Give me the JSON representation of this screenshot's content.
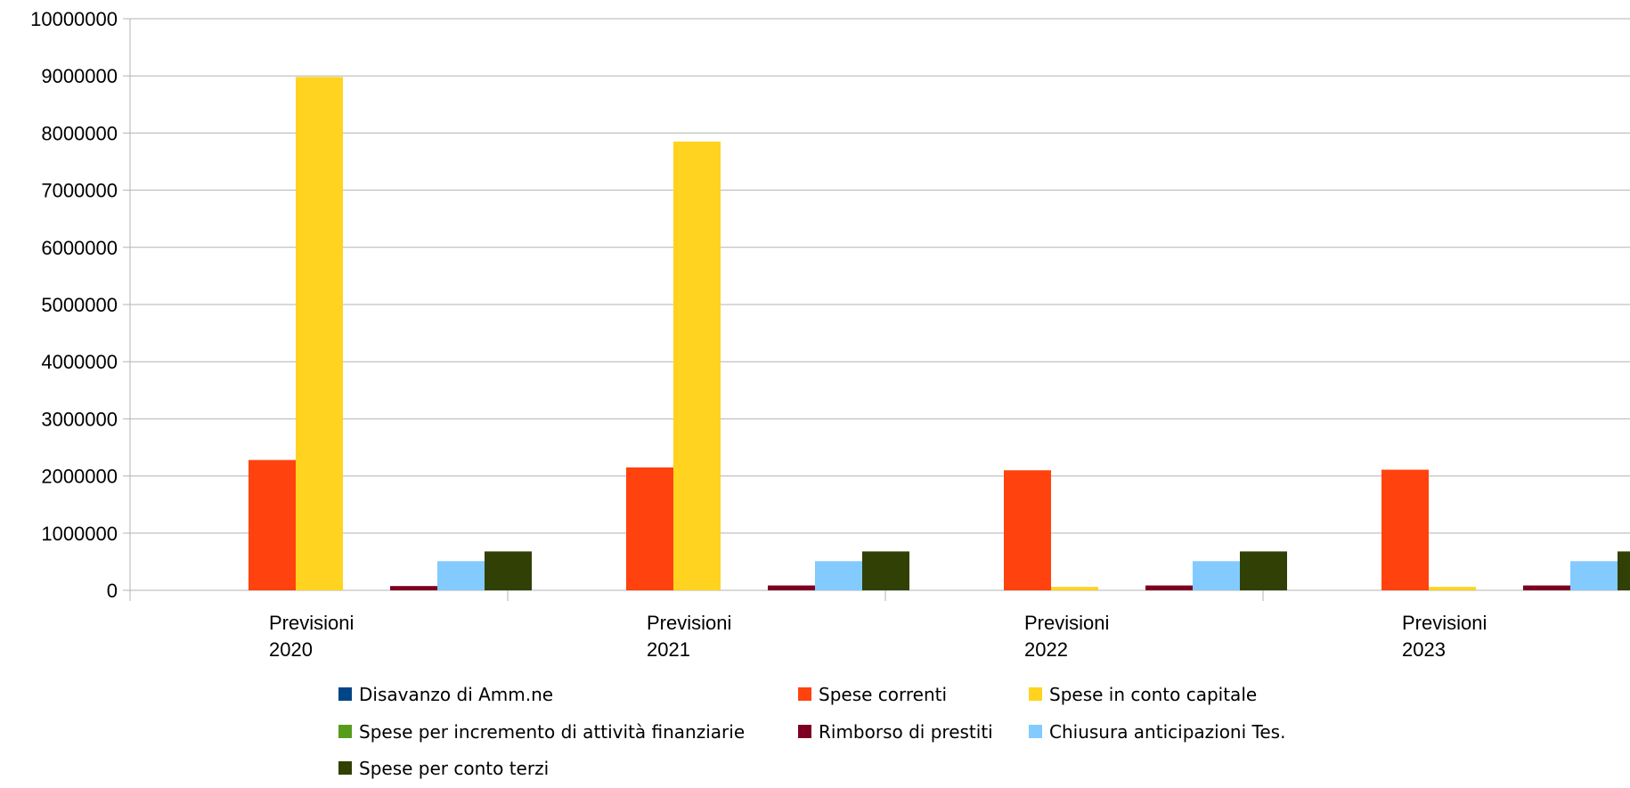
{
  "chart_data": {
    "type": "bar",
    "categories": [
      [
        "Previsioni",
        "2020"
      ],
      [
        "Previsioni",
        "2021"
      ],
      [
        "Previsioni",
        "2022"
      ],
      [
        "Previsioni",
        "2023"
      ]
    ],
    "ylim": [
      0,
      10000000
    ],
    "yticks": [
      0,
      1000000,
      2000000,
      3000000,
      4000000,
      5000000,
      6000000,
      7000000,
      8000000,
      9000000,
      10000000
    ],
    "grid": true,
    "legend_position": "bottom",
    "series": [
      {
        "name": "Disavanzo di Amm.ne",
        "color": "#004586",
        "values": [
          0,
          0,
          0,
          0
        ]
      },
      {
        "name": "Spese correnti",
        "color": "#ff420e",
        "values": [
          2280000,
          2150000,
          2100000,
          2110000
        ]
      },
      {
        "name": "Spese in conto capitale",
        "color": "#ffd320",
        "values": [
          8980000,
          7850000,
          60000,
          60000
        ]
      },
      {
        "name": "Spese per incremento di attività finanziarie",
        "color": "#579d1c",
        "values": [
          0,
          0,
          0,
          0
        ]
      },
      {
        "name": "Rimborso di prestiti",
        "color": "#7e0021",
        "values": [
          75000,
          85000,
          85000,
          85000
        ]
      },
      {
        "name": " Chiusura anticipazioni Tes.",
        "color": "#83caff",
        "values": [
          510000,
          510000,
          510000,
          510000
        ]
      },
      {
        "name": "Spese per conto terzi",
        "color": "#314004",
        "values": [
          680000,
          680000,
          680000,
          680000
        ]
      }
    ]
  }
}
